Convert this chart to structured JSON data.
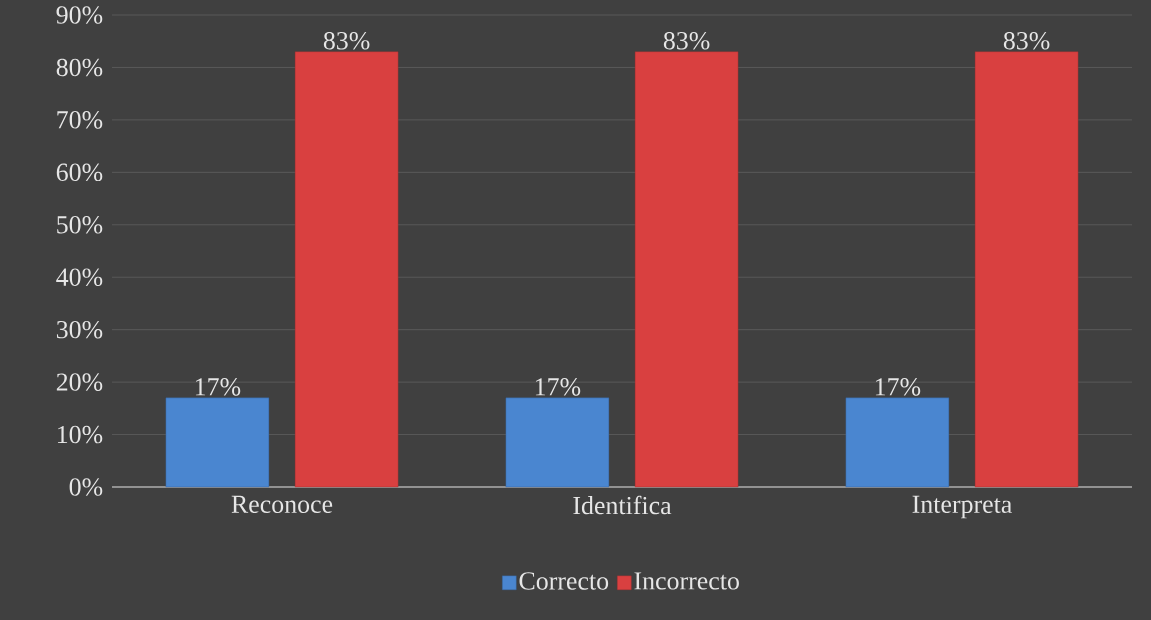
{
  "chart_data": {
    "type": "bar",
    "categories": [
      "Reconoce",
      "Identifica",
      "Interpreta"
    ],
    "series": [
      {
        "name": "Correcto",
        "color": "#4a86d0",
        "values": [
          17,
          17,
          17
        ],
        "value_labels": [
          "17%",
          "17%",
          "17%"
        ]
      },
      {
        "name": "Incorrecto",
        "color": "#d94040",
        "values": [
          83,
          83,
          83
        ],
        "value_labels": [
          "83%",
          "83%",
          "83%"
        ]
      }
    ],
    "ylim": [
      0,
      90
    ],
    "yticks": [
      {
        "value": 0,
        "label": "0%"
      },
      {
        "value": 10,
        "label": "10%"
      },
      {
        "value": 20,
        "label": "20%"
      },
      {
        "value": 30,
        "label": "30%"
      },
      {
        "value": 40,
        "label": "40%"
      },
      {
        "value": 50,
        "label": "50%"
      },
      {
        "value": 60,
        "label": "60%"
      },
      {
        "value": 70,
        "label": "70%"
      },
      {
        "value": 80,
        "label": "80%"
      },
      {
        "value": 90,
        "label": "90%"
      }
    ],
    "grid": "y",
    "legend": "bottom"
  }
}
